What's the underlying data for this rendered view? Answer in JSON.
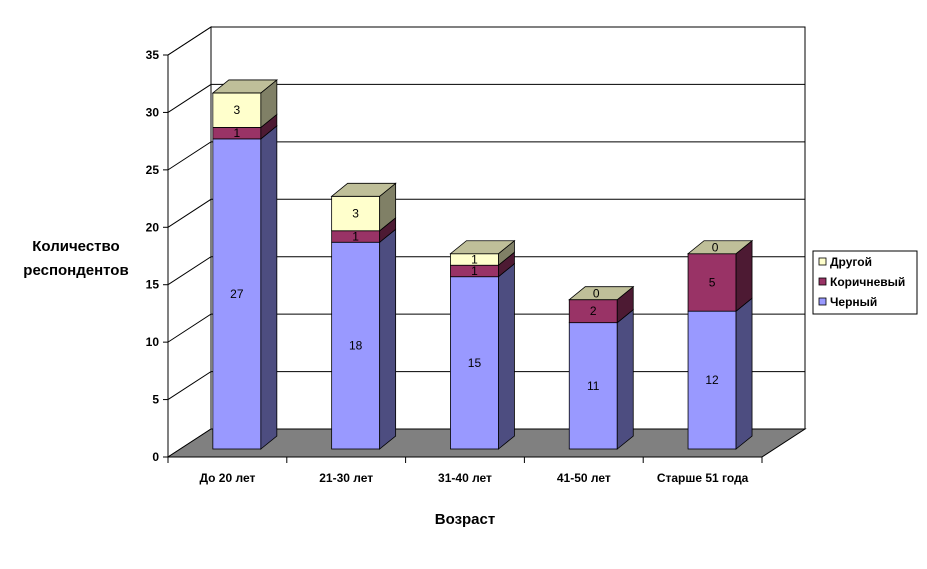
{
  "chart_data": {
    "type": "bar",
    "stacked": true,
    "three_d": true,
    "categories": [
      "До 20 лет",
      "21-30 лет",
      "31-40 лет",
      "41-50 лет",
      "Старше 51 года"
    ],
    "series": [
      {
        "name": "Черный",
        "values": [
          27,
          18,
          15,
          11,
          12
        ],
        "color": "#9999ff"
      },
      {
        "name": "Коричневый",
        "values": [
          1,
          1,
          1,
          2,
          5
        ],
        "color": "#993366"
      },
      {
        "name": "Другой",
        "values": [
          3,
          3,
          1,
          0,
          0
        ],
        "color": "#ffffcc"
      }
    ],
    "xlabel": "Возраст",
    "ylabel_lines": [
      "Количество",
      "респондентов"
    ],
    "ylim": [
      0,
      35
    ],
    "yticks": [
      0,
      5,
      10,
      15,
      20,
      25,
      30,
      35
    ],
    "grid": true,
    "legend": "right",
    "data_labels": true
  }
}
